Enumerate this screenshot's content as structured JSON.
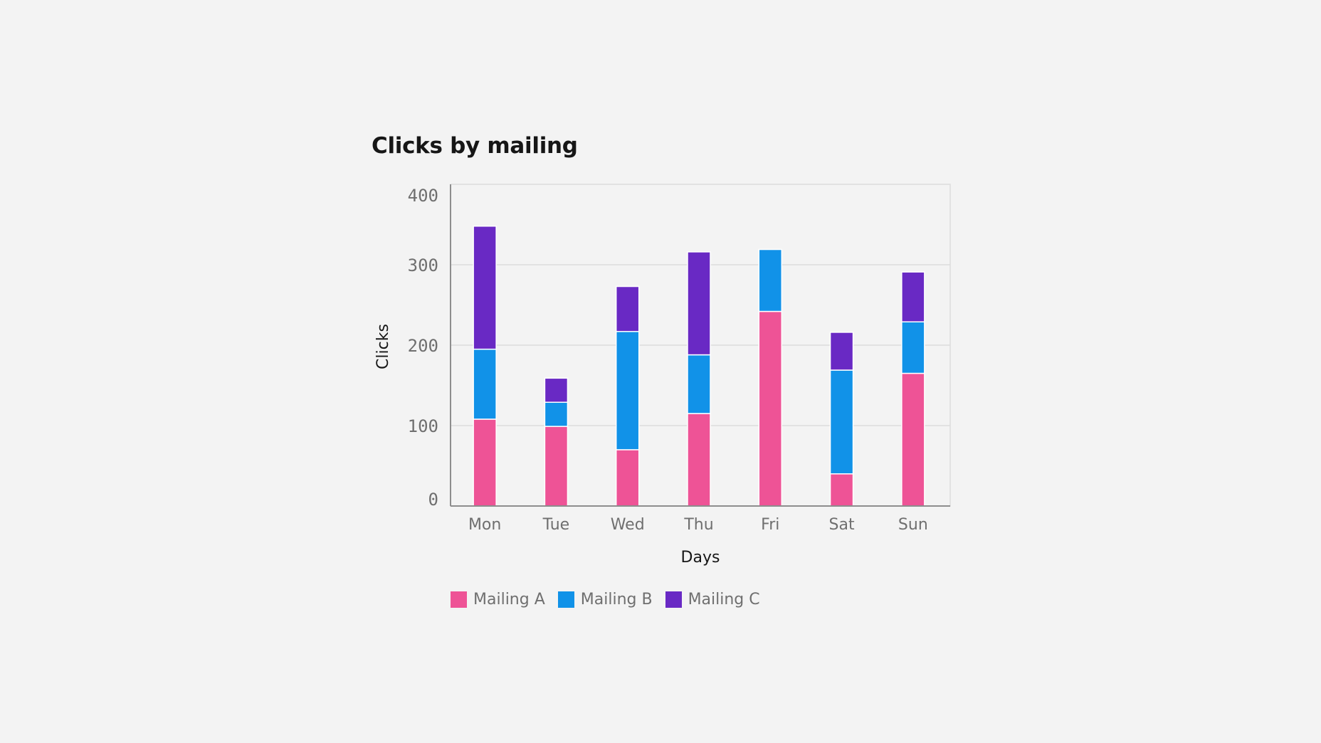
{
  "chart_data": {
    "type": "bar",
    "stacked": true,
    "title": "Clicks by mailing",
    "xlabel": "Days",
    "ylabel": "Clicks",
    "ylim": [
      0,
      400
    ],
    "yticks": [
      0,
      100,
      200,
      300,
      400
    ],
    "categories": [
      "Mon",
      "Tue",
      "Wed",
      "Thu",
      "Fri",
      "Sat",
      "Sun"
    ],
    "series": [
      {
        "name": "Mailing A",
        "color": "#ee5396",
        "values": [
          108,
          99,
          70,
          115,
          242,
          40,
          165
        ]
      },
      {
        "name": "Mailing B",
        "color": "#1192e8",
        "values": [
          87,
          30,
          147,
          73,
          77,
          129,
          64
        ]
      },
      {
        "name": "Mailing C",
        "color": "#6929c4",
        "values": [
          153,
          30,
          56,
          128,
          0,
          47,
          62
        ]
      }
    ],
    "grid": true,
    "legend_position": "bottom-left"
  }
}
